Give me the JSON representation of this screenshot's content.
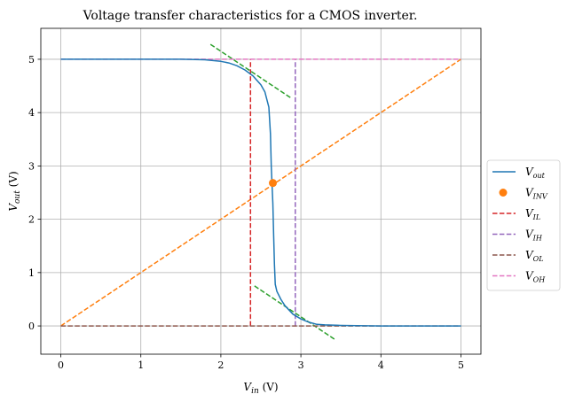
{
  "chart_data": {
    "type": "line",
    "title": "Voltage transfer characteristics for a CMOS inverter.",
    "xlabel_main": "V",
    "xlabel_sub": "in",
    "xlabel_unit": " (V)",
    "ylabel_main": "V",
    "ylabel_sub": "out",
    "ylabel_unit": " (V)",
    "xlim": [
      -0.25,
      5.25
    ],
    "ylim": [
      -0.53,
      5.58
    ],
    "xticks": [
      0,
      1,
      2,
      3,
      4,
      5
    ],
    "yticks": [
      0,
      1,
      2,
      3,
      4,
      5
    ],
    "grid": true,
    "legend_position": "right",
    "series": [
      {
        "name": "Vout",
        "label_main": "V",
        "label_sub": "out",
        "style": "solid",
        "color": "#1f77b4",
        "x": [
          0,
          0.5,
          1.0,
          1.5,
          1.8,
          2.0,
          2.1,
          2.2,
          2.3,
          2.4,
          2.5,
          2.55,
          2.6,
          2.62,
          2.63,
          2.64,
          2.65,
          2.66,
          2.67,
          2.68,
          2.7,
          2.75,
          2.8,
          2.9,
          3.0,
          3.1,
          3.2,
          3.3,
          3.5,
          4.0,
          4.5,
          5.0
        ],
        "y": [
          5,
          5,
          5,
          5,
          4.99,
          4.96,
          4.93,
          4.88,
          4.8,
          4.69,
          4.52,
          4.39,
          4.1,
          3.6,
          3.0,
          2.65,
          2.3,
          1.7,
          1.15,
          0.78,
          0.65,
          0.5,
          0.38,
          0.22,
          0.13,
          0.07,
          0.03,
          0.02,
          0.01,
          0.0,
          0.0,
          0.0
        ]
      },
      {
        "name": "VINV",
        "label_main": "V",
        "label_sub": "INV",
        "style": "marker",
        "color": "#ff7f0e",
        "x": [
          2.65
        ],
        "y": [
          2.68
        ]
      },
      {
        "name": "VIL",
        "label_main": "V",
        "label_sub": "IL",
        "style": "dashed",
        "color": "#d62728",
        "x": [
          2.37,
          2.37
        ],
        "y": [
          0,
          5
        ]
      },
      {
        "name": "VIH",
        "label_main": "V",
        "label_sub": "IH",
        "style": "dashed",
        "color": "#9467bd",
        "x": [
          2.93,
          2.93
        ],
        "y": [
          0,
          5
        ]
      },
      {
        "name": "VOL",
        "label_main": "V",
        "label_sub": "OL",
        "style": "dashed",
        "color": "#8c564b",
        "x": [
          0,
          5
        ],
        "y": [
          0,
          0
        ]
      },
      {
        "name": "VOH",
        "label_main": "V",
        "label_sub": "OH",
        "style": "dashed",
        "color": "#e377c2",
        "x": [
          0,
          5
        ],
        "y": [
          5,
          5
        ]
      }
    ],
    "unlabeled_lines": [
      {
        "color": "#ff7f0e",
        "style": "dashed",
        "x": [
          0,
          5
        ],
        "y": [
          0,
          5
        ]
      },
      {
        "color": "#2ca02c",
        "style": "dashed",
        "x": [
          1.87,
          2.87
        ],
        "y": [
          5.28,
          4.28
        ]
      },
      {
        "color": "#2ca02c",
        "style": "dashed",
        "x": [
          2.42,
          3.42
        ],
        "y": [
          0.75,
          -0.25
        ]
      }
    ]
  }
}
